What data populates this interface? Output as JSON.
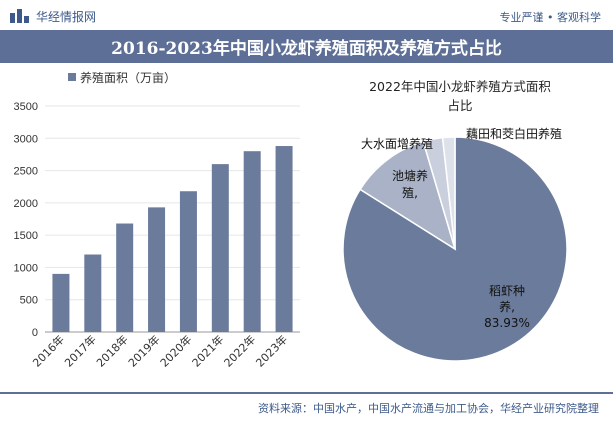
{
  "header": {
    "brand": "华经情报网",
    "tagline": "专业严谨 • 客观科学"
  },
  "title": "2016-2023年中国小龙虾养殖面积及养殖方式占比",
  "chart_data": [
    {
      "type": "bar",
      "categories": [
        "2016年",
        "2017年",
        "2018年",
        "2019年",
        "2020年",
        "2021年",
        "2022年",
        "2023年"
      ],
      "series": [
        {
          "name": "养殖面积（万亩）",
          "values": [
            900,
            1200,
            1680,
            1930,
            2180,
            2600,
            2800,
            2880
          ]
        }
      ],
      "ylim": [
        0,
        3500
      ],
      "yticks": [
        0,
        500,
        1000,
        1500,
        2000,
        2500,
        3000,
        3500
      ],
      "xlabel": "",
      "ylabel": "",
      "legend": "top-left",
      "color": "#6b7b9b"
    },
    {
      "type": "pie",
      "title_lines": [
        "2022年中国小龙虾养殖方式面积",
        "占比"
      ],
      "slices": [
        {
          "label_lines": [
            "稻虾种",
            "养,",
            "83.93%"
          ],
          "value": 83.93,
          "color": "#6b7b9b"
        },
        {
          "label_lines": [
            "池塘养",
            "殖,"
          ],
          "value": 11.5,
          "color": "#a9b2c6"
        },
        {
          "label_lines": [
            "大水面增养殖"
          ],
          "value": 2.8,
          "color": "#c9cfdc"
        },
        {
          "label_lines": [
            "藕田和茭白田养殖"
          ],
          "value": 1.77,
          "color": "#dde1ea"
        }
      ]
    }
  ],
  "source": "资料来源：中国水产，中国水产流通与加工协会，华经产业研究院整理",
  "watermark": "华经产业研究院",
  "colors": {
    "brand": "#3d5a8a",
    "title_bar": "#5d6f96"
  }
}
